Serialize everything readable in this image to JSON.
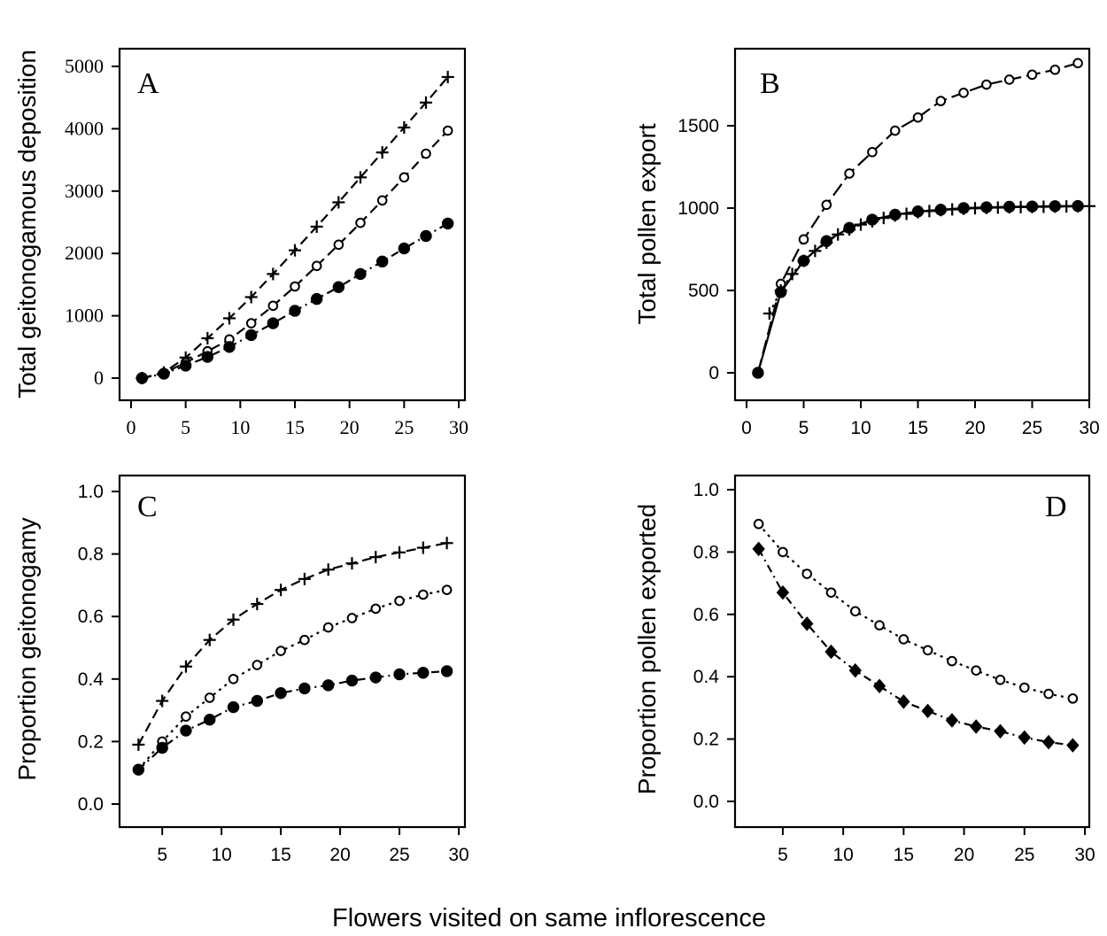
{
  "chart_data": [
    {
      "id": "A",
      "type": "line",
      "panel_label": "A",
      "ylabel": "Total geitonogamous deposition",
      "xlim": [
        0,
        30
      ],
      "ylim": [
        0,
        5000
      ],
      "xticks": [
        0,
        5,
        10,
        15,
        20,
        25,
        30
      ],
      "yticks": [
        0,
        1000,
        2000,
        3000,
        4000,
        5000
      ],
      "grid": false,
      "x": [
        1,
        3,
        5,
        7,
        9,
        11,
        13,
        15,
        17,
        19,
        21,
        23,
        25,
        27,
        29
      ],
      "series": [
        {
          "marker": "plus",
          "line": "dash",
          "values": [
            0,
            90,
            330,
            640,
            960,
            1300,
            1670,
            2050,
            2430,
            2820,
            3220,
            3620,
            4020,
            4420,
            4830
          ]
        },
        {
          "marker": "open-circle",
          "line": "dash",
          "values": [
            0,
            80,
            250,
            430,
            620,
            880,
            1160,
            1470,
            1800,
            2140,
            2490,
            2850,
            3220,
            3600,
            3970
          ]
        },
        {
          "marker": "filled-circle",
          "line": "dash-dot",
          "values": [
            0,
            70,
            200,
            340,
            500,
            690,
            880,
            1080,
            1270,
            1460,
            1670,
            1870,
            2080,
            2280,
            2480
          ]
        }
      ]
    },
    {
      "id": "B",
      "type": "line",
      "panel_label": "B",
      "ylabel": "Total pollen export",
      "xlim": [
        0,
        30
      ],
      "ylim": [
        0,
        1900
      ],
      "xticks": [
        0,
        5,
        10,
        15,
        20,
        25,
        30
      ],
      "yticks": [
        0,
        500,
        1000,
        1500
      ],
      "grid": false,
      "series": [
        {
          "marker": "open-circle",
          "line": "long-dash",
          "x": [
            1,
            3,
            5,
            7,
            9,
            11,
            13,
            15,
            17,
            19,
            21,
            23,
            25,
            27,
            29
          ],
          "values": [
            0,
            540,
            810,
            1020,
            1210,
            1340,
            1470,
            1550,
            1650,
            1700,
            1750,
            1780,
            1810,
            1840,
            1880
          ]
        },
        {
          "marker": "plus",
          "line": "dotted",
          "x": [
            2,
            3,
            4,
            5,
            6,
            7,
            8,
            9,
            10,
            11,
            12,
            13,
            14,
            15,
            16,
            17,
            18,
            19,
            20,
            21,
            22,
            23,
            24,
            25,
            26,
            27,
            28,
            29,
            30
          ],
          "values": [
            360,
            500,
            600,
            680,
            740,
            790,
            840,
            870,
            900,
            920,
            940,
            955,
            965,
            975,
            982,
            988,
            992,
            996,
            999,
            1001,
            1003,
            1005,
            1006,
            1007,
            1008,
            1009,
            1010,
            1011,
            1012
          ]
        },
        {
          "marker": "filled-circle",
          "line": "solid",
          "x": [
            1,
            3,
            5,
            7,
            9,
            11,
            13,
            15,
            17,
            19,
            21,
            23,
            25,
            27,
            29
          ],
          "values": [
            0,
            490,
            680,
            800,
            880,
            930,
            960,
            980,
            990,
            1000,
            1005,
            1008,
            1010,
            1012,
            1013
          ]
        }
      ]
    },
    {
      "id": "C",
      "type": "line",
      "panel_label": "C",
      "ylabel": "Proportion geitonogamy",
      "xlim": [
        2,
        30
      ],
      "ylim": [
        0,
        1
      ],
      "xticks": [
        5,
        10,
        15,
        20,
        25,
        30
      ],
      "yticks": [
        0.0,
        0.2,
        0.4,
        0.6,
        0.8,
        1.0
      ],
      "ytick_labels": [
        "0.0",
        "0.2",
        "0.4",
        "0.6",
        "0.8",
        "1.0"
      ],
      "grid": false,
      "x": [
        3,
        5,
        7,
        9,
        11,
        13,
        15,
        17,
        19,
        21,
        23,
        25,
        27,
        29
      ],
      "series": [
        {
          "marker": "plus",
          "line": "dash",
          "values": [
            0.19,
            0.33,
            0.44,
            0.525,
            0.59,
            0.64,
            0.685,
            0.72,
            0.75,
            0.77,
            0.79,
            0.805,
            0.82,
            0.835
          ]
        },
        {
          "marker": "open-circle",
          "line": "dotted",
          "values": [
            0.11,
            0.2,
            0.28,
            0.34,
            0.4,
            0.445,
            0.49,
            0.525,
            0.565,
            0.595,
            0.625,
            0.65,
            0.67,
            0.685
          ]
        },
        {
          "marker": "filled-circle",
          "line": "dash-dot",
          "values": [
            0.11,
            0.18,
            0.235,
            0.27,
            0.31,
            0.33,
            0.355,
            0.37,
            0.38,
            0.395,
            0.405,
            0.415,
            0.42,
            0.425
          ]
        }
      ]
    },
    {
      "id": "D",
      "type": "line",
      "panel_label": "D",
      "ylabel": "Proportion pollen exported",
      "xlim": [
        2,
        30
      ],
      "ylim": [
        0,
        1
      ],
      "xticks": [
        5,
        10,
        15,
        20,
        25,
        30
      ],
      "yticks": [
        0.0,
        0.2,
        0.4,
        0.6,
        0.8,
        1.0
      ],
      "ytick_labels": [
        "0.0",
        "0.2",
        "0.4",
        "0.6",
        "0.8",
        "1.0"
      ],
      "grid": false,
      "x": [
        3,
        5,
        7,
        9,
        11,
        13,
        15,
        17,
        19,
        21,
        23,
        25,
        27,
        29
      ],
      "series": [
        {
          "marker": "open-circle",
          "line": "dotted",
          "values": [
            0.89,
            0.8,
            0.73,
            0.67,
            0.61,
            0.565,
            0.52,
            0.485,
            0.45,
            0.42,
            0.39,
            0.365,
            0.345,
            0.33
          ]
        },
        {
          "marker": "filled-diamond",
          "line": "dash-dot",
          "values": [
            0.81,
            0.67,
            0.57,
            0.48,
            0.42,
            0.37,
            0.32,
            0.29,
            0.26,
            0.24,
            0.225,
            0.205,
            0.19,
            0.18
          ]
        }
      ]
    }
  ],
  "xlabel": "Flowers visited on same inflorescence"
}
